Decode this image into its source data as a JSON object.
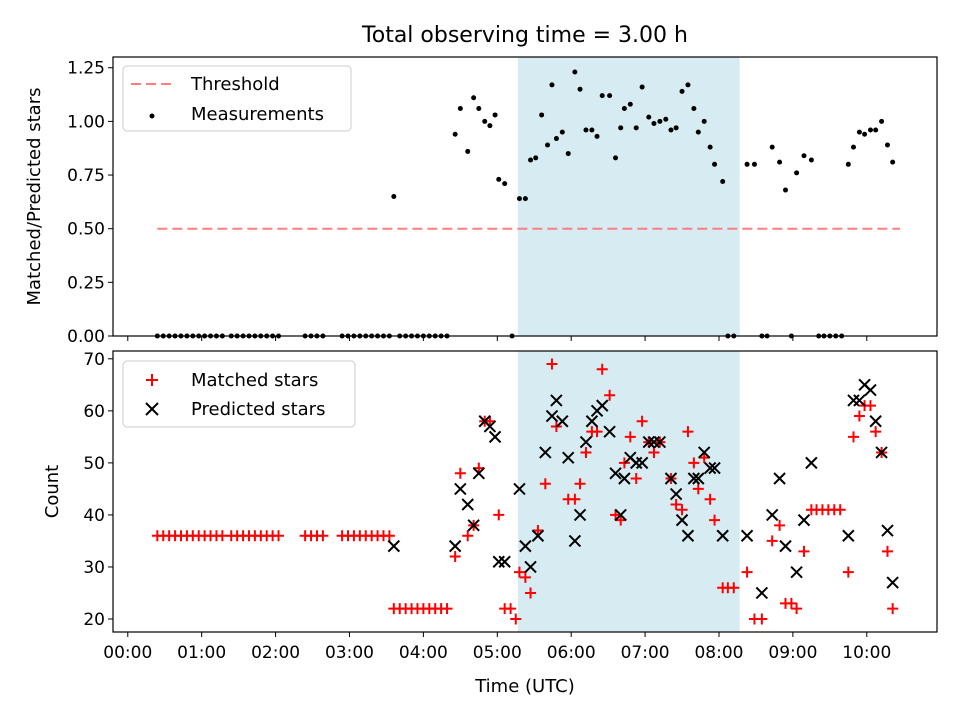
{
  "chart_data": {
    "title": "Total observing time = 3.00 h",
    "xlabel": "Time (UTC)",
    "xlim_hours": [
      -0.2,
      10.95
    ],
    "x_ticks": [
      {
        "h": 0,
        "label": "00:00"
      },
      {
        "h": 1,
        "label": "01:00"
      },
      {
        "h": 2,
        "label": "02:00"
      },
      {
        "h": 3,
        "label": "03:00"
      },
      {
        "h": 4,
        "label": "04:00"
      },
      {
        "h": 5,
        "label": "05:00"
      },
      {
        "h": 6,
        "label": "06:00"
      },
      {
        "h": 7,
        "label": "07:00"
      },
      {
        "h": 8,
        "label": "08:00"
      },
      {
        "h": 9,
        "label": "09:00"
      },
      {
        "h": 10,
        "label": "10:00"
      }
    ],
    "shaded_interval_hours": [
      5.28,
      8.28
    ],
    "colors": {
      "threshold": "#ff7f7f",
      "matched": "#ff0000",
      "predicted": "#000000",
      "shade": "#add8e6"
    },
    "top": {
      "type": "scatter",
      "ylabel": "Matched/Predicted stars",
      "ylim": [
        0,
        1.3
      ],
      "y_ticks": [
        "0.00",
        "0.25",
        "0.50",
        "0.75",
        "1.00",
        "1.25"
      ],
      "legend": [
        "Threshold",
        "Measurements"
      ],
      "legend_loc": "upper left",
      "threshold": {
        "value": 0.5,
        "x_range": [
          0.4,
          10.45
        ]
      },
      "points": [
        [
          0.4,
          0
        ],
        [
          0.48,
          0
        ],
        [
          0.56,
          0
        ],
        [
          0.64,
          0
        ],
        [
          0.72,
          0
        ],
        [
          0.8,
          0
        ],
        [
          0.88,
          0
        ],
        [
          0.96,
          0
        ],
        [
          1.04,
          0
        ],
        [
          1.12,
          0
        ],
        [
          1.2,
          0
        ],
        [
          1.28,
          0
        ],
        [
          1.4,
          0
        ],
        [
          1.48,
          0
        ],
        [
          1.56,
          0
        ],
        [
          1.64,
          0
        ],
        [
          1.72,
          0
        ],
        [
          1.8,
          0
        ],
        [
          1.88,
          0
        ],
        [
          1.96,
          0
        ],
        [
          2.04,
          0
        ],
        [
          2.4,
          0
        ],
        [
          2.48,
          0
        ],
        [
          2.56,
          0
        ],
        [
          2.64,
          0
        ],
        [
          2.9,
          0
        ],
        [
          2.98,
          0
        ],
        [
          3.06,
          0
        ],
        [
          3.14,
          0
        ],
        [
          3.22,
          0
        ],
        [
          3.3,
          0
        ],
        [
          3.38,
          0
        ],
        [
          3.46,
          0
        ],
        [
          3.54,
          0
        ],
        [
          3.6,
          0.65
        ],
        [
          3.68,
          0
        ],
        [
          3.76,
          0
        ],
        [
          3.84,
          0
        ],
        [
          3.92,
          0
        ],
        [
          4.0,
          0
        ],
        [
          4.08,
          0
        ],
        [
          4.16,
          0
        ],
        [
          4.24,
          0
        ],
        [
          4.32,
          0
        ],
        [
          4.43,
          0.94
        ],
        [
          4.5,
          1.06
        ],
        [
          4.6,
          0.86
        ],
        [
          4.68,
          1.11
        ],
        [
          4.75,
          1.06
        ],
        [
          4.83,
          1.0
        ],
        [
          4.9,
          0.98
        ],
        [
          4.97,
          1.03
        ],
        [
          5.02,
          0.73
        ],
        [
          5.1,
          0.71
        ],
        [
          5.2,
          0
        ],
        [
          5.3,
          0.64
        ],
        [
          5.38,
          0.64
        ],
        [
          5.45,
          0.82
        ],
        [
          5.52,
          0.83
        ],
        [
          5.6,
          1.03
        ],
        [
          5.68,
          0.89
        ],
        [
          5.74,
          1.17
        ],
        [
          5.8,
          0.92
        ],
        [
          5.88,
          0.95
        ],
        [
          5.96,
          0.85
        ],
        [
          6.05,
          1.23
        ],
        [
          6.12,
          1.15
        ],
        [
          6.2,
          0.96
        ],
        [
          6.28,
          0.96
        ],
        [
          6.35,
          0.93
        ],
        [
          6.42,
          1.12
        ],
        [
          6.52,
          1.12
        ],
        [
          6.6,
          0.83
        ],
        [
          6.67,
          0.97
        ],
        [
          6.72,
          1.06
        ],
        [
          6.8,
          1.08
        ],
        [
          6.88,
          0.97
        ],
        [
          6.96,
          1.16
        ],
        [
          7.05,
          1.02
        ],
        [
          7.12,
          0.99
        ],
        [
          7.2,
          1.0
        ],
        [
          7.28,
          1.01
        ],
        [
          7.35,
          0.96
        ],
        [
          7.42,
          0.97
        ],
        [
          7.5,
          1.14
        ],
        [
          7.58,
          1.17
        ],
        [
          7.66,
          1.06
        ],
        [
          7.72,
          0.95
        ],
        [
          7.8,
          1.0
        ],
        [
          7.88,
          0.88
        ],
        [
          7.94,
          0.8
        ],
        [
          8.05,
          0.72
        ],
        [
          8.12,
          0
        ],
        [
          8.2,
          0
        ],
        [
          8.38,
          0.8
        ],
        [
          8.48,
          0.8
        ],
        [
          8.58,
          0
        ],
        [
          8.65,
          0
        ],
        [
          8.72,
          0.88
        ],
        [
          8.82,
          0.81
        ],
        [
          8.9,
          0.68
        ],
        [
          8.98,
          0
        ],
        [
          9.05,
          0.76
        ],
        [
          9.15,
          0.84
        ],
        [
          9.25,
          0.82
        ],
        [
          9.35,
          0
        ],
        [
          9.42,
          0
        ],
        [
          9.5,
          0
        ],
        [
          9.58,
          0
        ],
        [
          9.66,
          0
        ],
        [
          9.75,
          0.8
        ],
        [
          9.82,
          0.88
        ],
        [
          9.9,
          0.95
        ],
        [
          9.97,
          0.94
        ],
        [
          10.05,
          0.96
        ],
        [
          10.12,
          0.96
        ],
        [
          10.2,
          1.0
        ],
        [
          10.28,
          0.89
        ],
        [
          10.35,
          0.81
        ]
      ]
    },
    "bottom": {
      "type": "scatter",
      "ylabel": "Count",
      "ylim": [
        17.5,
        71.5
      ],
      "y_ticks": [
        20,
        30,
        40,
        50,
        60,
        70
      ],
      "legend": [
        "Matched stars",
        "Predicted stars"
      ],
      "legend_loc": "upper left",
      "matched": [
        [
          0.4,
          36
        ],
        [
          0.48,
          36
        ],
        [
          0.56,
          36
        ],
        [
          0.64,
          36
        ],
        [
          0.72,
          36
        ],
        [
          0.8,
          36
        ],
        [
          0.88,
          36
        ],
        [
          0.96,
          36
        ],
        [
          1.04,
          36
        ],
        [
          1.12,
          36
        ],
        [
          1.2,
          36
        ],
        [
          1.28,
          36
        ],
        [
          1.4,
          36
        ],
        [
          1.48,
          36
        ],
        [
          1.56,
          36
        ],
        [
          1.64,
          36
        ],
        [
          1.72,
          36
        ],
        [
          1.8,
          36
        ],
        [
          1.88,
          36
        ],
        [
          1.96,
          36
        ],
        [
          2.04,
          36
        ],
        [
          2.4,
          36
        ],
        [
          2.48,
          36
        ],
        [
          2.56,
          36
        ],
        [
          2.64,
          36
        ],
        [
          2.9,
          36
        ],
        [
          2.98,
          36
        ],
        [
          3.06,
          36
        ],
        [
          3.14,
          36
        ],
        [
          3.22,
          36
        ],
        [
          3.3,
          36
        ],
        [
          3.38,
          36
        ],
        [
          3.46,
          36
        ],
        [
          3.54,
          36
        ],
        [
          3.6,
          22
        ],
        [
          3.68,
          22
        ],
        [
          3.76,
          22
        ],
        [
          3.84,
          22
        ],
        [
          3.92,
          22
        ],
        [
          4.0,
          22
        ],
        [
          4.08,
          22
        ],
        [
          4.16,
          22
        ],
        [
          4.24,
          22
        ],
        [
          4.32,
          22
        ],
        [
          4.43,
          32
        ],
        [
          4.5,
          48
        ],
        [
          4.6,
          36
        ],
        [
          4.68,
          38
        ],
        [
          4.75,
          49
        ],
        [
          4.83,
          58
        ],
        [
          4.9,
          58
        ],
        [
          5.02,
          40
        ],
        [
          5.1,
          22
        ],
        [
          5.18,
          22
        ],
        [
          5.25,
          20
        ],
        [
          5.3,
          29
        ],
        [
          5.38,
          28
        ],
        [
          5.45,
          25
        ],
        [
          5.55,
          37
        ],
        [
          5.65,
          46
        ],
        [
          5.74,
          69
        ],
        [
          5.8,
          57
        ],
        [
          5.96,
          43
        ],
        [
          6.05,
          43
        ],
        [
          6.12,
          46
        ],
        [
          6.2,
          52
        ],
        [
          6.28,
          56
        ],
        [
          6.35,
          56
        ],
        [
          6.42,
          68
        ],
        [
          6.52,
          63
        ],
        [
          6.6,
          40
        ],
        [
          6.67,
          39
        ],
        [
          6.72,
          50
        ],
        [
          6.8,
          55
        ],
        [
          6.88,
          47
        ],
        [
          6.96,
          58
        ],
        [
          7.05,
          54
        ],
        [
          7.12,
          52
        ],
        [
          7.2,
          54
        ],
        [
          7.35,
          47
        ],
        [
          7.42,
          42
        ],
        [
          7.5,
          41
        ],
        [
          7.58,
          56
        ],
        [
          7.66,
          50
        ],
        [
          7.72,
          45
        ],
        [
          7.8,
          51
        ],
        [
          7.88,
          43
        ],
        [
          7.94,
          39
        ],
        [
          8.05,
          26
        ],
        [
          8.12,
          26
        ],
        [
          8.2,
          26
        ],
        [
          8.38,
          29
        ],
        [
          8.48,
          20
        ],
        [
          8.58,
          20
        ],
        [
          8.72,
          35
        ],
        [
          8.82,
          38
        ],
        [
          8.9,
          23
        ],
        [
          8.98,
          23
        ],
        [
          9.05,
          22
        ],
        [
          9.15,
          33
        ],
        [
          9.25,
          41
        ],
        [
          9.32,
          41
        ],
        [
          9.4,
          41
        ],
        [
          9.48,
          41
        ],
        [
          9.56,
          41
        ],
        [
          9.64,
          41
        ],
        [
          9.75,
          29
        ],
        [
          9.82,
          55
        ],
        [
          9.9,
          59
        ],
        [
          9.97,
          61
        ],
        [
          10.05,
          61
        ],
        [
          10.12,
          56
        ],
        [
          10.2,
          52
        ],
        [
          10.28,
          33
        ],
        [
          10.35,
          22
        ]
      ],
      "predicted": [
        [
          3.6,
          34
        ],
        [
          4.43,
          34
        ],
        [
          4.5,
          45
        ],
        [
          4.6,
          42
        ],
        [
          4.68,
          38
        ],
        [
          4.75,
          48
        ],
        [
          4.83,
          58
        ],
        [
          4.9,
          57
        ],
        [
          4.97,
          55
        ],
        [
          5.02,
          31
        ],
        [
          5.1,
          31
        ],
        [
          5.3,
          45
        ],
        [
          5.38,
          34
        ],
        [
          5.45,
          30
        ],
        [
          5.55,
          36
        ],
        [
          5.65,
          52
        ],
        [
          5.74,
          59
        ],
        [
          5.8,
          62
        ],
        [
          5.88,
          58
        ],
        [
          5.96,
          51
        ],
        [
          6.05,
          35
        ],
        [
          6.12,
          40
        ],
        [
          6.2,
          54
        ],
        [
          6.28,
          58
        ],
        [
          6.35,
          60
        ],
        [
          6.42,
          61
        ],
        [
          6.52,
          56
        ],
        [
          6.6,
          48
        ],
        [
          6.67,
          40
        ],
        [
          6.72,
          47
        ],
        [
          6.8,
          51
        ],
        [
          6.88,
          50
        ],
        [
          6.96,
          50
        ],
        [
          7.05,
          54
        ],
        [
          7.12,
          54
        ],
        [
          7.2,
          54
        ],
        [
          7.35,
          47
        ],
        [
          7.42,
          44
        ],
        [
          7.5,
          39
        ],
        [
          7.58,
          36
        ],
        [
          7.66,
          47
        ],
        [
          7.72,
          47
        ],
        [
          7.8,
          52
        ],
        [
          7.88,
          49
        ],
        [
          7.94,
          49
        ],
        [
          8.05,
          36
        ],
        [
          8.38,
          36
        ],
        [
          8.58,
          25
        ],
        [
          8.72,
          40
        ],
        [
          8.82,
          47
        ],
        [
          8.9,
          34
        ],
        [
          9.05,
          29
        ],
        [
          9.15,
          39
        ],
        [
          9.25,
          50
        ],
        [
          9.75,
          36
        ],
        [
          9.82,
          62
        ],
        [
          9.9,
          62
        ],
        [
          9.97,
          65
        ],
        [
          10.05,
          64
        ],
        [
          10.12,
          58
        ],
        [
          10.2,
          52
        ],
        [
          10.28,
          37
        ],
        [
          10.35,
          27
        ]
      ]
    }
  }
}
